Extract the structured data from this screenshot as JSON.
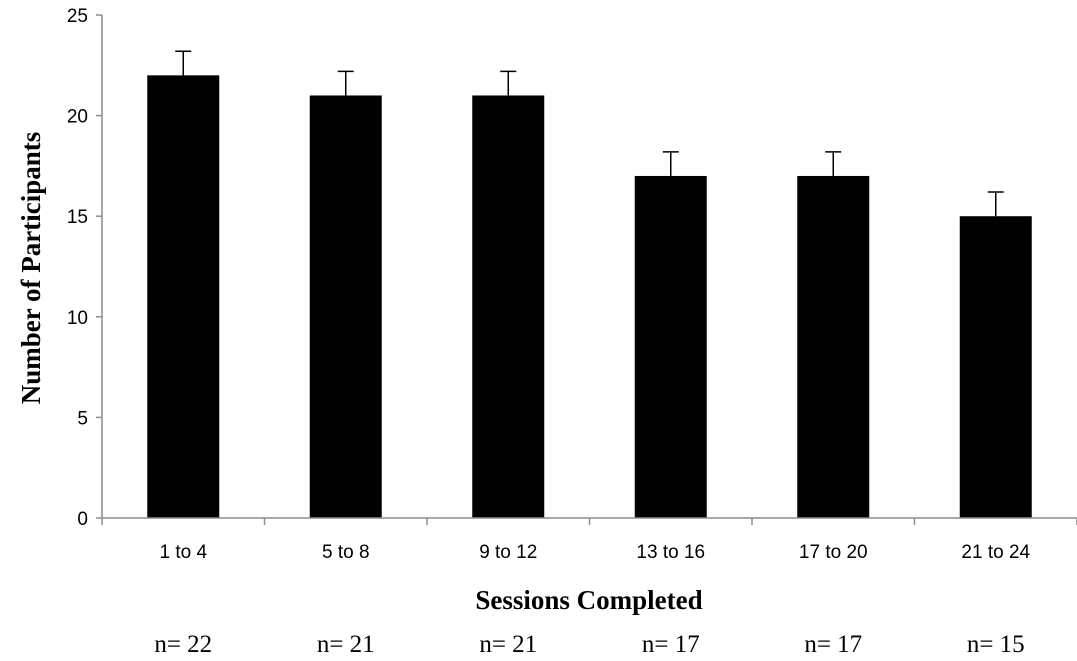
{
  "chart_data": {
    "type": "bar",
    "categories": [
      "1 to 4",
      "5 to 8",
      "9 to 12",
      "13 to 16",
      "17 to 20",
      "21 to 24"
    ],
    "values": [
      22,
      21,
      21,
      17,
      17,
      15
    ],
    "error_plus": [
      1.2,
      1.2,
      1.2,
      1.2,
      1.2,
      1.2
    ],
    "xlabel": "Sessions Completed",
    "ylabel": "Number of Participants",
    "ylim": [
      0,
      25
    ],
    "yticks": [
      0,
      5,
      10,
      15,
      20,
      25
    ],
    "n_labels": [
      "n= 22",
      "n= 21",
      "n= 21",
      "n= 17",
      "n= 17",
      "n= 15"
    ],
    "grid": false,
    "bar_color": "#000000",
    "axis_color": "#8c8c8c"
  }
}
